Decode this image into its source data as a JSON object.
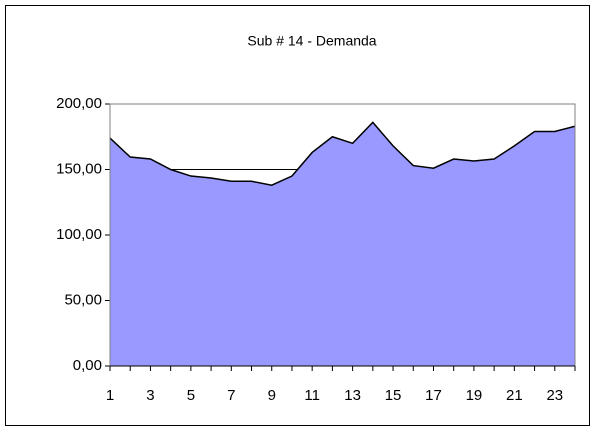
{
  "chart_data": {
    "type": "area",
    "title": "Sub # 14 - Demanda",
    "categories": [
      "1",
      null,
      "3",
      null,
      "5",
      null,
      "7",
      null,
      "9",
      null,
      "11",
      null,
      "13",
      null,
      "15",
      null,
      "17",
      null,
      "19",
      null,
      "21",
      null,
      "23",
      null
    ],
    "values": [
      174,
      159.5,
      158,
      150,
      145,
      143.5,
      141,
      141,
      138,
      145,
      163,
      175,
      170,
      186,
      168,
      153,
      151,
      158,
      156.5,
      158,
      168,
      179,
      179,
      183
    ],
    "color": "#9999ff",
    "line_color": "#000000",
    "ylim": [
      0,
      200
    ],
    "yticks": [
      {
        "value": 0,
        "label": "0,00"
      },
      {
        "value": 50,
        "label": "50,00"
      },
      {
        "value": 100,
        "label": "100,00"
      },
      {
        "value": 150,
        "label": "150,00"
      },
      {
        "value": 200,
        "label": "200,00"
      }
    ],
    "grid": true
  }
}
